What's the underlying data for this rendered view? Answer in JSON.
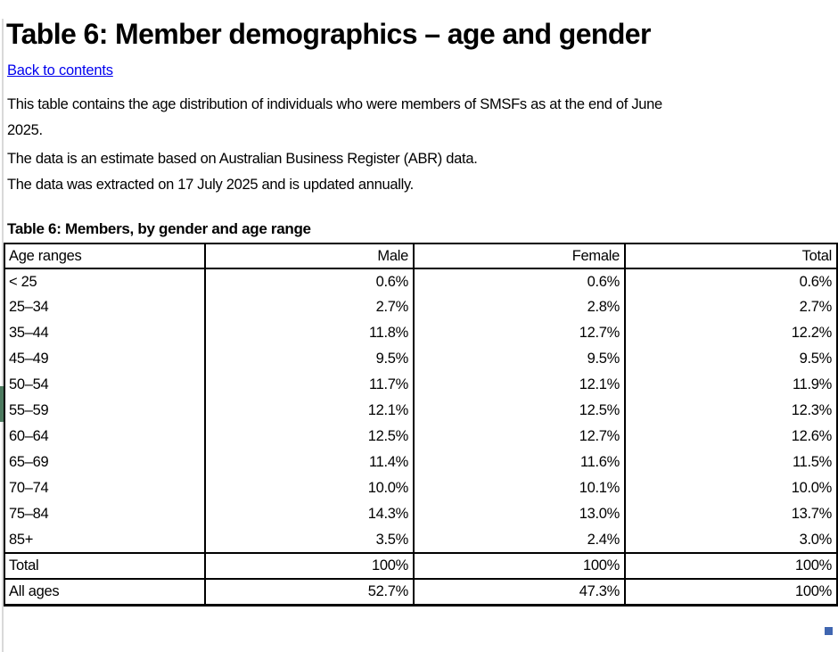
{
  "page": {
    "title": "Table 6: Member demographics – age and gender",
    "back_link_label": "Back to contents",
    "paragraphs": [
      {
        "lines": [
          "This table contains the age distribution of individuals who were members of SMSFs as at the end of June",
          "2025."
        ]
      },
      {
        "lines": [
          "The data is an estimate based on Australian Business Register (ABR) data."
        ]
      },
      {
        "lines": [
          "The data was extracted on 17 July 2025 and is updated annually."
        ]
      }
    ],
    "table_caption": "Table 6: Members, by gender and age range"
  },
  "table": {
    "columns": [
      "Age ranges",
      "Male",
      "Female",
      "Total"
    ],
    "rows": [
      {
        "age_range": "< 25",
        "male": "0.6%",
        "female": "0.6%",
        "total": "0.6%"
      },
      {
        "age_range": "25–34",
        "male": "2.7%",
        "female": "2.8%",
        "total": "2.7%"
      },
      {
        "age_range": "35–44",
        "male": "11.8%",
        "female": "12.7%",
        "total": "12.2%"
      },
      {
        "age_range": "45–49",
        "male": "9.5%",
        "female": "9.5%",
        "total": "9.5%"
      },
      {
        "age_range": "50–54",
        "male": "11.7%",
        "female": "12.1%",
        "total": "11.9%"
      },
      {
        "age_range": "55–59",
        "male": "12.1%",
        "female": "12.5%",
        "total": "12.3%"
      },
      {
        "age_range": "60–64",
        "male": "12.5%",
        "female": "12.7%",
        "total": "12.6%"
      },
      {
        "age_range": "65–69",
        "male": "11.4%",
        "female": "11.6%",
        "total": "11.5%"
      },
      {
        "age_range": "70–74",
        "male": "10.0%",
        "female": "10.1%",
        "total": "10.0%"
      },
      {
        "age_range": "75–84",
        "male": "14.3%",
        "female": "13.0%",
        "total": "13.7%"
      },
      {
        "age_range": "85+",
        "male": "3.5%",
        "female": "2.4%",
        "total": "3.0%"
      }
    ],
    "summary_rows": [
      {
        "age_range": "Total",
        "male": "100%",
        "female": "100%",
        "total": "100%"
      },
      {
        "age_range": "All ages",
        "male": "52.7%",
        "female": "47.3%",
        "total": "100%"
      }
    ]
  },
  "colors": {
    "link": "#0000EE",
    "selection_handle": "#4066b0",
    "left_edge_marker": "#4c7a5f",
    "table_border": "#000000"
  }
}
